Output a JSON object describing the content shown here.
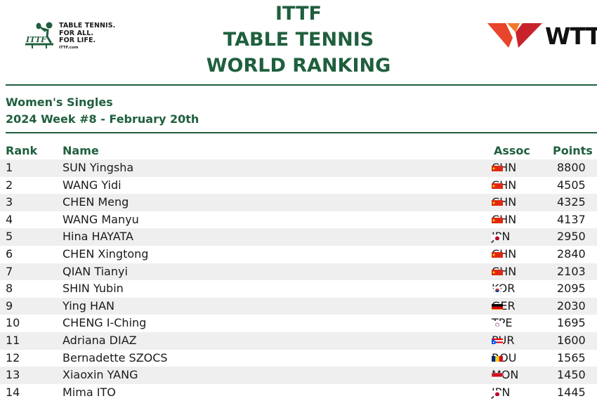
{
  "header": {
    "title_lines": [
      "ITTF",
      "TABLE TENNIS",
      "WORLD RANKING"
    ],
    "ittf_tagline": [
      "TABLE TENNIS.",
      "FOR ALL.",
      "FOR LIFE."
    ],
    "ittf_url": "ITTF.com",
    "ittf_mark": "ITTF",
    "wtt_text": "WTT",
    "accent_color": "#1f5f3d"
  },
  "subheader": {
    "category": "Women's Singles",
    "week": "2024 Week #8 - February 20th"
  },
  "table": {
    "columns": {
      "rank": "Rank",
      "name": "Name",
      "assoc": "Assoc",
      "points": "Points"
    },
    "rows": [
      {
        "rank": "1",
        "name": "SUN Yingsha",
        "assoc": "CHN",
        "flag": "chn",
        "points": "8800"
      },
      {
        "rank": "2",
        "name": "WANG Yidi",
        "assoc": "CHN",
        "flag": "chn",
        "points": "4505"
      },
      {
        "rank": "3",
        "name": "CHEN Meng",
        "assoc": "CHN",
        "flag": "chn",
        "points": "4325"
      },
      {
        "rank": "4",
        "name": "WANG Manyu",
        "assoc": "CHN",
        "flag": "chn",
        "points": "4137"
      },
      {
        "rank": "5",
        "name": "Hina HAYATA",
        "assoc": "JPN",
        "flag": "jpn",
        "points": "2950"
      },
      {
        "rank": "6",
        "name": "CHEN Xingtong",
        "assoc": "CHN",
        "flag": "chn",
        "points": "2840"
      },
      {
        "rank": "7",
        "name": "QIAN Tianyi",
        "assoc": "CHN",
        "flag": "chn",
        "points": "2103"
      },
      {
        "rank": "8",
        "name": "SHIN Yubin",
        "assoc": "KOR",
        "flag": "kor",
        "points": "2095"
      },
      {
        "rank": "9",
        "name": "Ying HAN",
        "assoc": "GER",
        "flag": "ger",
        "points": "2030"
      },
      {
        "rank": "10",
        "name": "CHENG I-Ching",
        "assoc": "TPE",
        "flag": "tpe",
        "points": "1695"
      },
      {
        "rank": "11",
        "name": "Adriana DIAZ",
        "assoc": "PUR",
        "flag": "pur",
        "points": "1600"
      },
      {
        "rank": "12",
        "name": "Bernadette SZOCS",
        "assoc": "ROU",
        "flag": "rou",
        "points": "1565"
      },
      {
        "rank": "13",
        "name": "Xiaoxin YANG",
        "assoc": "MON",
        "flag": "mon",
        "points": "1450"
      },
      {
        "rank": "14",
        "name": "Mima ITO",
        "assoc": "JPN",
        "flag": "jpn",
        "points": "1445"
      }
    ]
  }
}
